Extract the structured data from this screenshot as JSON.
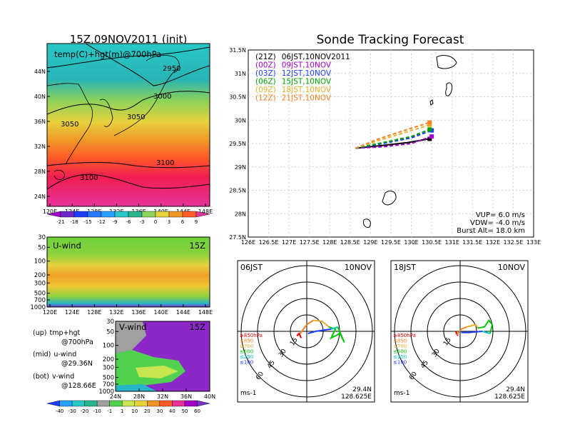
{
  "left": {
    "title": "15Z,09NOV2011 (init)",
    "top_panel": {
      "label": "temp(C)+hgt(m)@700hPa",
      "lat_ticks": [
        "44N",
        "40N",
        "36N",
        "32N",
        "28N",
        "24N"
      ],
      "lon_ticks": [
        "120E",
        "124E",
        "128E",
        "132E",
        "136E",
        "140E",
        "144E",
        "148E"
      ],
      "contours": [
        "2950",
        "3000",
        "3050",
        "3050",
        "3100",
        "3100"
      ],
      "colorbar": [
        "-21",
        "-18",
        "-15",
        "-12",
        "-9",
        "-6",
        "-3",
        "0",
        "3",
        "6",
        "9"
      ]
    },
    "mid_panel": {
      "label": "U-wind",
      "time": "15Z",
      "p_ticks": [
        "30",
        "50",
        "100",
        "200",
        "300",
        "500",
        "700",
        "1000"
      ],
      "lon_ticks": [
        "120E",
        "124E",
        "128E",
        "132E",
        "136E",
        "140E",
        "144E",
        "148E"
      ]
    },
    "bot_panel": {
      "label": "V-wind",
      "time": "15Z",
      "p_ticks": [
        "30",
        "50",
        "100",
        "200",
        "300",
        "500",
        "700",
        "1000"
      ],
      "lat_ticks": [
        "24N",
        "28N",
        "32N",
        "36N",
        "40N"
      ],
      "colorbar": [
        "-40",
        "-30",
        "-20",
        "-10",
        "-1",
        "1",
        "10",
        "20",
        "30",
        "40",
        "50",
        "60"
      ]
    },
    "legend": [
      {
        "key": "(up)",
        "text": "tmp+hgt",
        "sub": "@700hPa"
      },
      {
        "key": "(mid)",
        "text": "u-wind",
        "sub": "@29.36N"
      },
      {
        "key": "(bot)",
        "text": "v-wind",
        "sub": "@128.66E"
      }
    ]
  },
  "right": {
    "title": "Sonde Tracking Forecast",
    "y_ticks": [
      "31.5N",
      "31N",
      "30.5N",
      "30N",
      "29.5N",
      "29N",
      "28.5N",
      "28N",
      "27.5N"
    ],
    "x_ticks": [
      "126E",
      "126.5E",
      "127E",
      "127.5E",
      "128E",
      "128.5E",
      "129E",
      "129.5E",
      "130E",
      "130.5E",
      "131E",
      "131.5E",
      "132E",
      "132.5E",
      "133E"
    ],
    "legend": [
      {
        "run": "(21Z)",
        "valid": "06JST,10NOV2011",
        "color": "#000000"
      },
      {
        "run": "(00Z)",
        "valid": "09JST,10NOV",
        "color": "#a000c8"
      },
      {
        "run": "(03Z)",
        "valid": "12JST,10NOV",
        "color": "#1e3cff"
      },
      {
        "run": "(06Z)",
        "valid": "15JST,10NOV",
        "color": "#00a000"
      },
      {
        "run": "(09Z)",
        "valid": "18JST,10NOV",
        "color": "#e6af2d"
      },
      {
        "run": "(12Z)",
        "valid": "21JST,10NOV",
        "color": "#f08228"
      }
    ],
    "params": [
      "VUP=  6.0  m/s",
      "VDW= -4.0  m/s",
      "Burst Alt=  18.0  km"
    ]
  },
  "hodographs": [
    {
      "time": "06JST",
      "date": "10NOV",
      "lat": "29.4N",
      "lon": "128.625E",
      "unit": "ms-1",
      "rings": [
        "15",
        "30",
        "45",
        "60"
      ],
      "levels": [
        "≥850hPa",
        "≤850",
        "≤700",
        "≤500",
        "≤250",
        "≤100"
      ]
    },
    {
      "time": "18JST",
      "date": "10NOV",
      "lat": "29.4N",
      "lon": "128.625E",
      "unit": "ms-1",
      "rings": [
        "15",
        "30",
        "45",
        "60"
      ],
      "levels": [
        "≥850hPa",
        "≤850",
        "≤700",
        "≤500",
        "≤250",
        "≤100"
      ]
    }
  ],
  "level_colors": [
    "#e60000",
    "#f08228",
    "#e6af2d",
    "#00c800",
    "#00c8c8",
    "#1e3cff"
  ],
  "chart_data": [
    {
      "type": "line",
      "title": "Sonde Tracking Forecast",
      "xlim": [
        126,
        133
      ],
      "ylim": [
        27.5,
        31.5
      ],
      "series": [
        {
          "name": "(21Z) 06JST,10NOV2011",
          "color": "#000000",
          "x": [
            128.63,
            129.2,
            129.9,
            130.45
          ],
          "y": [
            29.4,
            29.45,
            29.52,
            29.6
          ]
        },
        {
          "name": "(00Z) 09JST,10NOV",
          "color": "#a000c8",
          "x": [
            128.63,
            129.3,
            130.0,
            130.5
          ],
          "y": [
            29.4,
            29.43,
            29.5,
            29.65
          ]
        },
        {
          "name": "(03Z) 12JST,10NOV",
          "color": "#1e3cff",
          "x": [
            128.63,
            129.3,
            130.0,
            130.5
          ],
          "y": [
            29.4,
            29.5,
            29.62,
            29.78
          ]
        },
        {
          "name": "(06Z) 15JST,10NOV",
          "color": "#00a000",
          "x": [
            128.63,
            129.3,
            130.0,
            130.45
          ],
          "y": [
            29.4,
            29.52,
            29.65,
            29.8
          ]
        },
        {
          "name": "(09Z) 18JST,10NOV",
          "color": "#e6af2d",
          "x": [
            128.63,
            129.25,
            129.9,
            130.45
          ],
          "y": [
            29.4,
            29.58,
            29.75,
            29.9
          ]
        },
        {
          "name": "(12Z) 21JST,10NOV",
          "color": "#f08228",
          "x": [
            128.63,
            129.2,
            129.9,
            130.45
          ],
          "y": [
            29.4,
            29.6,
            29.8,
            29.95
          ]
        }
      ]
    }
  ]
}
